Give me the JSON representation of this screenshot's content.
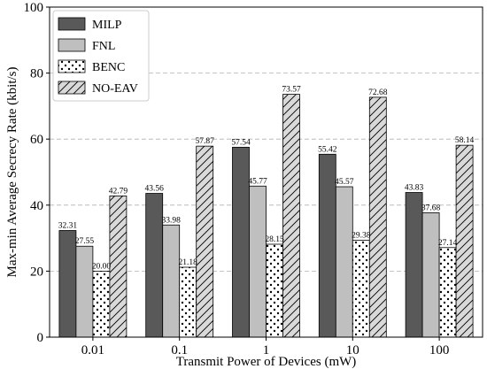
{
  "chart_data": {
    "type": "bar",
    "title": "",
    "xlabel": "Transmit Power of Devices (mW)",
    "ylabel": "Max-min Average Secrecy Rate (kbit/s)",
    "categories": [
      "0.01",
      "0.1",
      "1",
      "10",
      "100"
    ],
    "ylim": [
      0,
      100
    ],
    "yticks": [
      0,
      20,
      40,
      60,
      80,
      100
    ],
    "grid": "horizontal dashed",
    "legend_position": "top-left",
    "series": [
      {
        "name": "MILP",
        "values": [
          32.31,
          43.56,
          57.54,
          55.42,
          43.83
        ],
        "labels": [
          "32.31",
          "43.56",
          "57.54",
          "55.42",
          "43.83"
        ],
        "fill": "#595959",
        "pattern": "none"
      },
      {
        "name": "FNL",
        "values": [
          27.55,
          33.98,
          45.77,
          45.57,
          37.68
        ],
        "labels": [
          "27.55",
          "33.98",
          "45.77",
          "45.57",
          "37.68"
        ],
        "fill": "#bfbfbf",
        "pattern": "none"
      },
      {
        "name": "BENC",
        "values": [
          20.0,
          21.18,
          28.15,
          29.38,
          27.14
        ],
        "labels": [
          "20.00",
          "21.18",
          "28.15",
          "29.38",
          "27.14"
        ],
        "fill": "#ffffff",
        "pattern": "dots"
      },
      {
        "name": "NO-EAV",
        "values": [
          42.79,
          57.87,
          73.57,
          72.68,
          58.14
        ],
        "labels": [
          "42.79",
          "57.87",
          "73.57",
          "72.68",
          "58.14"
        ],
        "fill": "#d9d9d9",
        "pattern": "diagonal"
      }
    ]
  }
}
